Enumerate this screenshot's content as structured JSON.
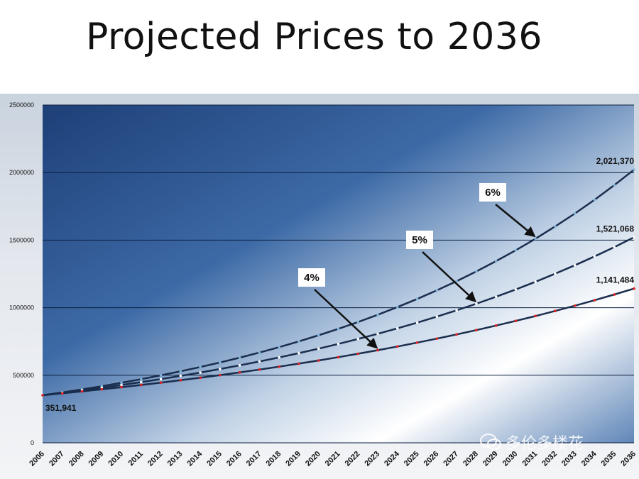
{
  "title": "Projected Prices to 2036",
  "watermark": "多伦多楼花",
  "chart_data": {
    "type": "line",
    "x": [
      2006,
      2007,
      2008,
      2009,
      2010,
      2011,
      2012,
      2013,
      2014,
      2015,
      2016,
      2017,
      2018,
      2019,
      2020,
      2021,
      2022,
      2023,
      2024,
      2025,
      2026,
      2027,
      2028,
      2029,
      2030,
      2031,
      2032,
      2033,
      2034,
      2035,
      2036
    ],
    "ylim": [
      0,
      2500000
    ],
    "yticks": [
      "0",
      "500000",
      "1000000",
      "1500000",
      "2000000",
      "2500000"
    ],
    "grid": true,
    "start_value": 351941,
    "start_label": "351,941",
    "series": [
      {
        "name": "6%",
        "rate": 0.06,
        "end_label": "2,021,370",
        "line_color": "#1a2d4d",
        "dot_color": "#7fb3d9"
      },
      {
        "name": "5%",
        "rate": 0.05,
        "end_label": "1,521,068",
        "line_color": "#1a2d4d",
        "dot_color": "#ffffff"
      },
      {
        "name": "4%",
        "rate": 0.04,
        "end_label": "1,141,484",
        "line_color": "#1a2d4d",
        "dot_color": "#e02020"
      }
    ],
    "annotations": [
      {
        "text": "6%",
        "arrow_to_year": 2031,
        "series": 0
      },
      {
        "text": "5%",
        "arrow_to_year": 2028,
        "series": 1
      },
      {
        "text": "4%",
        "arrow_to_year": 2023,
        "series": 2
      }
    ]
  }
}
